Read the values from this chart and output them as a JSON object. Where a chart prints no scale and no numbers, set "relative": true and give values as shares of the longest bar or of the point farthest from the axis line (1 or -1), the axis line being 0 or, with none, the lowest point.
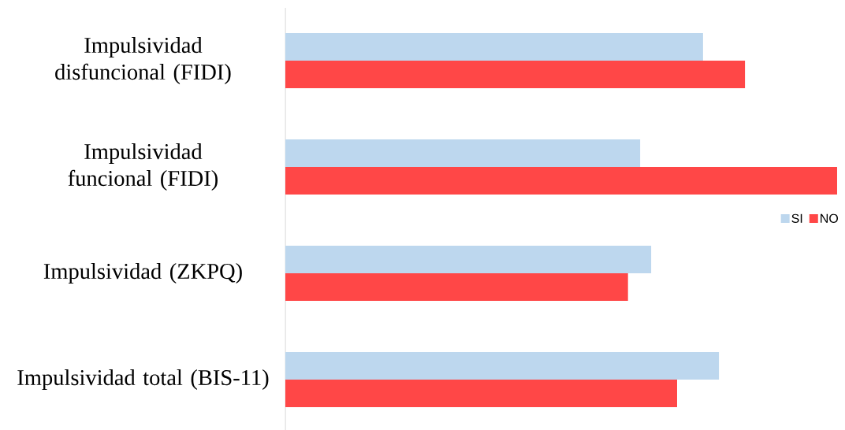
{
  "chart_data": {
    "type": "bar",
    "orientation": "horizontal",
    "relative": true,
    "legend": "right",
    "categories": [
      "Impulsividad disfuncional (FIDI)",
      "Impulsividad funcional (FIDI)",
      "Impulsividad (ZKPQ)",
      "Impulsividad total (BIS-11)"
    ],
    "series": [
      {
        "name": "SI",
        "color": "#bdd7ee",
        "values": [
          0.757,
          0.643,
          0.663,
          0.786
        ]
      },
      {
        "name": "NO",
        "color": "#ff4747",
        "values": [
          0.833,
          1.0,
          0.621,
          0.71
        ]
      }
    ]
  }
}
